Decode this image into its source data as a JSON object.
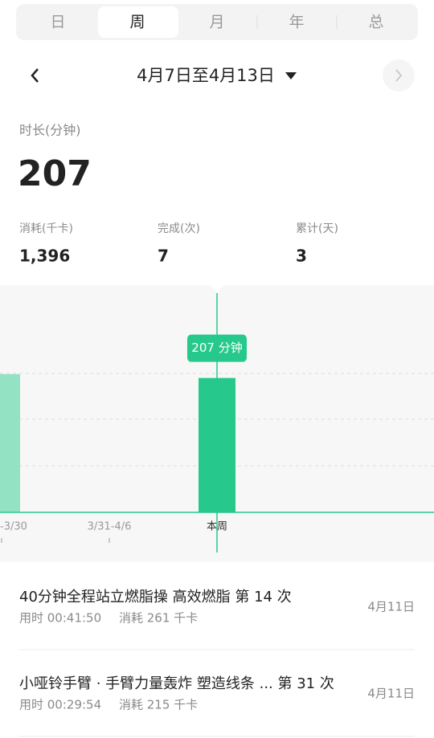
{
  "tabs": [
    "日",
    "周",
    "月",
    "年",
    "总"
  ],
  "date_range": "4月7日至4月13日",
  "duration": {
    "label": "时长(分钟)",
    "value": "207"
  },
  "stats": [
    {
      "label": "消耗(千卡)",
      "value": "1,396"
    },
    {
      "label": "完成(次)",
      "value": "7"
    },
    {
      "label": "累计(天)",
      "value": "3"
    }
  ],
  "chart_data": {
    "type": "bar",
    "categories": [
      "-3/30",
      "3/31-4/6",
      "本周"
    ],
    "values": [
      213,
      0,
      207
    ],
    "value_labels": [
      null,
      null,
      "207 分钟"
    ],
    "colors": [
      "#94e2c4",
      "#94e2c4",
      "#26c98b"
    ],
    "ylim": [
      0,
      214
    ]
  },
  "records": [
    {
      "title": "40分钟全程站立燃脂操 高效燃脂 第 14 次",
      "time": "用时 00:41:50",
      "calories": "消耗 261 千卡",
      "date": "4月11日"
    },
    {
      "title": "小哑铃手臂 · 手臂力量轰炸 塑造线条 ... 第 31 次",
      "time": "用时 00:29:54",
      "calories": "消耗 215 千卡",
      "date": "4月11日"
    }
  ]
}
